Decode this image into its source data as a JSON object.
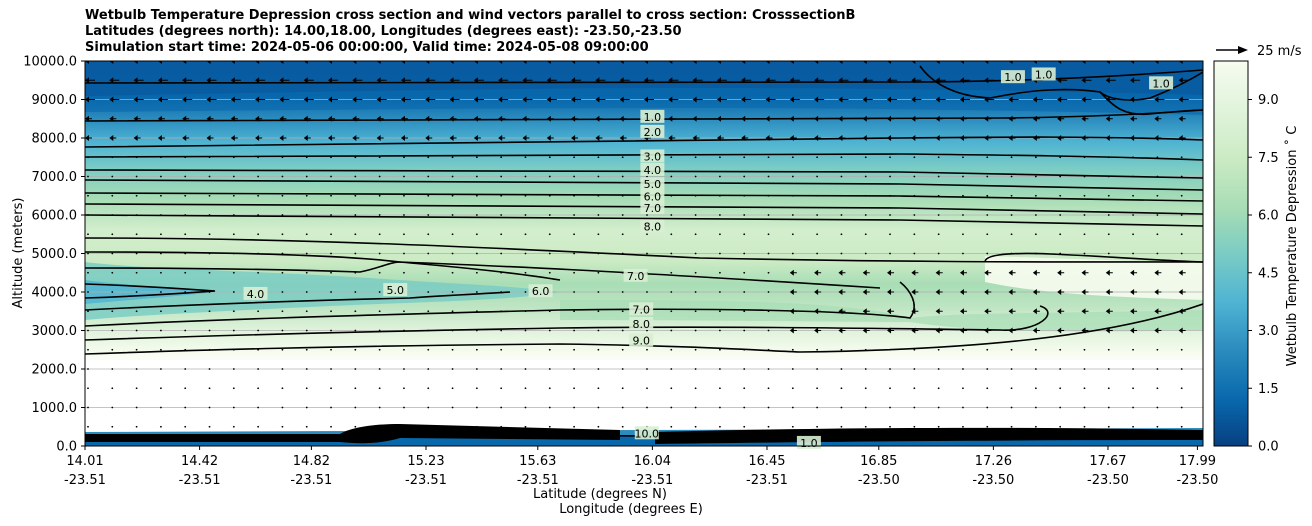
{
  "chart_data": {
    "type": "contour",
    "title_lines": [
      "Wetbulb Temperature Depression cross section and wind vectors parallel to cross section: CrosssectionB",
      "Latitudes (degrees north): 14.00,18.00, Longitudes (degrees east): -23.50,-23.50",
      "Simulation start time: 2024-05-06 00:00:00, Valid time: 2024-05-08 09:00:00"
    ],
    "ylabel": "Altitude (meters)",
    "xlabel_lat": "Latitude (degrees N)",
    "xlabel_lon": "Longitude (degrees E)",
    "ylim": [
      0,
      10000
    ],
    "y_ticks": [
      "0.0",
      "1000.0",
      "2000.0",
      "3000.0",
      "4000.0",
      "5000.0",
      "6000.0",
      "7000.0",
      "8000.0",
      "9000.0",
      "10000.0"
    ],
    "y_tick_values": [
      0,
      1000,
      2000,
      3000,
      4000,
      5000,
      6000,
      7000,
      8000,
      9000,
      10000
    ],
    "x_ticks_lat": [
      "14.01",
      "14.42",
      "14.82",
      "15.23",
      "15.63",
      "16.04",
      "16.45",
      "16.85",
      "17.26",
      "17.67",
      "17.99"
    ],
    "x_ticks_lon": [
      "-23.51",
      "-23.51",
      "-23.51",
      "-23.51",
      "-23.51",
      "-23.51",
      "-23.51",
      "-23.50",
      "-23.50",
      "-23.50",
      "-23.50"
    ],
    "x_tick_fractions": [
      0.0,
      0.1025,
      0.2025,
      0.305,
      0.405,
      0.5075,
      0.61,
      0.71,
      0.8125,
      0.915,
      0.995
    ],
    "colorbar": {
      "label": "Wetbulb Temperature Depression ˚ C",
      "range": [
        0,
        10
      ],
      "ticks": [
        "0.0",
        "1.5",
        "3.0",
        "4.5",
        "6.0",
        "7.5",
        "9.0"
      ],
      "tick_values": [
        0,
        1.5,
        3.0,
        4.5,
        6.0,
        7.5,
        9.0
      ],
      "colors": [
        "#084081",
        "#0868ac",
        "#2b8cbe",
        "#4eb3d3",
        "#7bccc4",
        "#a8ddb5",
        "#ccebc5",
        "#e0f3db",
        "#f7fcf0"
      ]
    },
    "wind_reference": "25 m/s",
    "contour_labels": [
      {
        "text": "1.0",
        "lat": 16.04,
        "alt": 8550
      },
      {
        "text": "2.0",
        "lat": 16.04,
        "alt": 8160
      },
      {
        "text": "3.0",
        "lat": 16.04,
        "alt": 7520
      },
      {
        "text": "4.0",
        "lat": 16.04,
        "alt": 7170
      },
      {
        "text": "5.0",
        "lat": 16.04,
        "alt": 6800
      },
      {
        "text": "6.0",
        "lat": 16.04,
        "alt": 6480
      },
      {
        "text": "7.0",
        "lat": 16.04,
        "alt": 6180
      },
      {
        "text": "8.0",
        "lat": 16.04,
        "alt": 5700
      },
      {
        "text": "7.0",
        "lat": 15.98,
        "alt": 4420
      },
      {
        "text": "6.0",
        "lat": 15.64,
        "alt": 4020
      },
      {
        "text": "5.0",
        "lat": 15.12,
        "alt": 4050
      },
      {
        "text": "4.0",
        "lat": 14.62,
        "alt": 3950
      },
      {
        "text": "7.0",
        "lat": 16.0,
        "alt": 3550
      },
      {
        "text": "8.0",
        "lat": 16.0,
        "alt": 3170
      },
      {
        "text": "9.0",
        "lat": 16.0,
        "alt": 2740
      },
      {
        "text": "1.0",
        "lat": 16.6,
        "alt": 80
      },
      {
        "text": "10.0",
        "lat": 16.02,
        "alt": 330
      },
      {
        "text": "1.0",
        "lat": 17.33,
        "alt": 9580
      },
      {
        "text": "1.0",
        "lat": 17.44,
        "alt": 9650
      },
      {
        "text": "1.0",
        "lat": 17.86,
        "alt": 9420
      }
    ]
  }
}
